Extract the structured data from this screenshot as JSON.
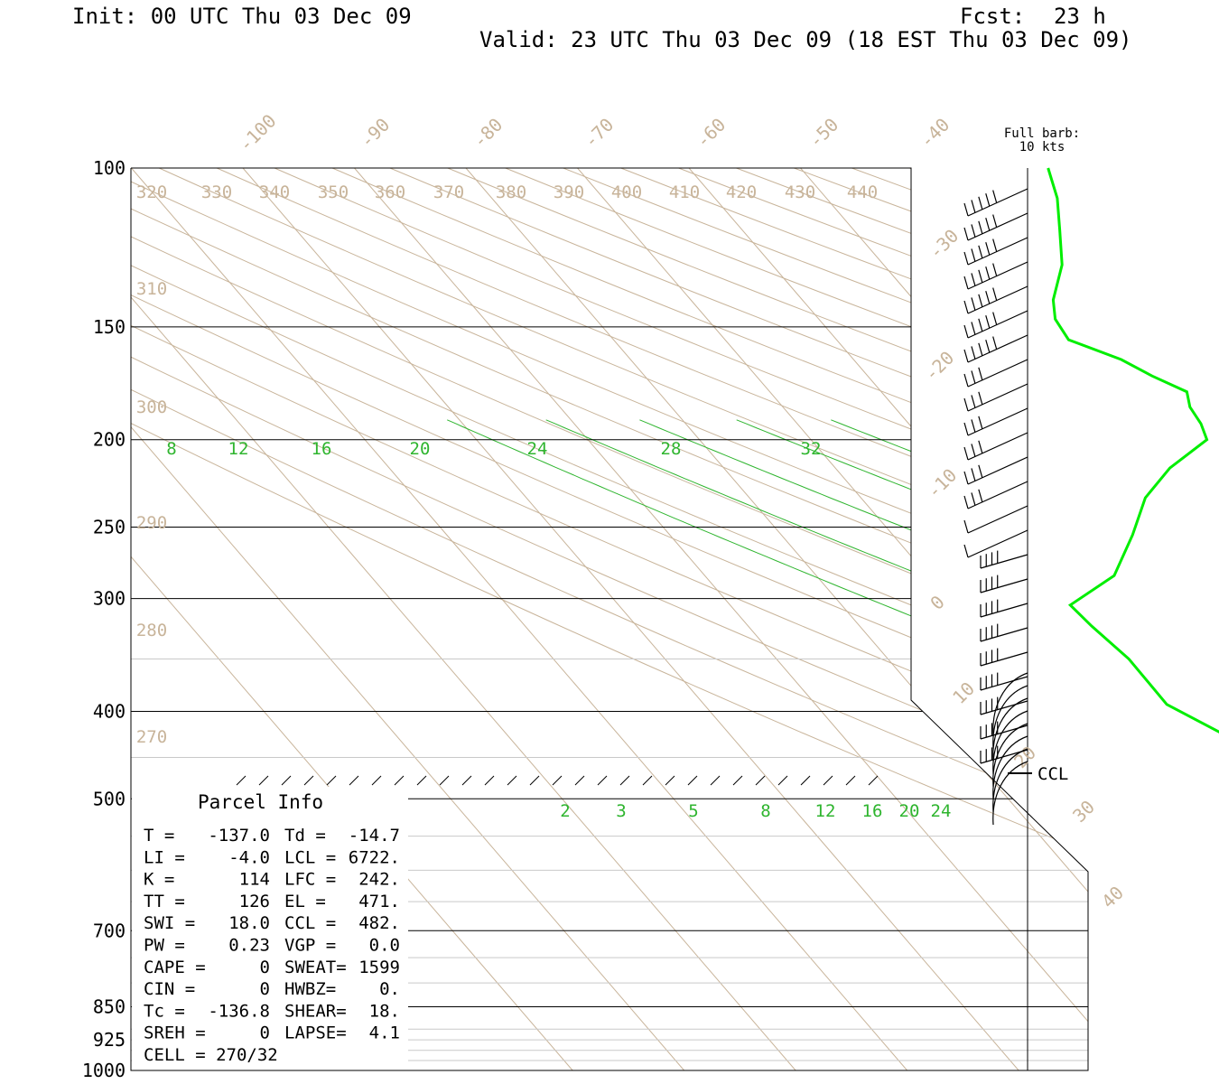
{
  "header": {
    "init": "Init: 00 UTC Thu 03 Dec 09",
    "fcst_label": "Fcst:",
    "fcst_hours": "23 h",
    "valid": "Valid: 23 UTC Thu 03 Dec 09 (18 EST Thu 03 Dec 09)"
  },
  "barb_legend": {
    "line1": "Full barb:",
    "line2": "10 kts"
  },
  "ccl_label": "CCL",
  "parcel_info": {
    "title": "Parcel Info",
    "rows": [
      [
        "T  =",
        "-137.0",
        "Td =",
        "-14.7"
      ],
      [
        "LI =",
        "-4.0",
        "LCL =",
        "6722."
      ],
      [
        "K  =",
        "114",
        "LFC =",
        "242."
      ],
      [
        "TT =",
        "126",
        "EL  =",
        "471."
      ],
      [
        "SWI =",
        "18.0",
        "CCL =",
        "482."
      ],
      [
        "PW =",
        "0.23",
        "VGP =",
        "0.0"
      ],
      [
        "CAPE =",
        "0",
        "SWEAT=",
        "1599"
      ],
      [
        "CIN =",
        "0",
        "HWBZ=",
        "0."
      ],
      [
        "Tc =",
        "-136.8",
        "SHEAR=",
        "18."
      ],
      [
        "SREH =",
        "0",
        "LAPSE=",
        "4.1"
      ],
      [
        "CELL = 270/32",
        "",
        "",
        ""
      ]
    ]
  },
  "colors": {
    "isotherm": "#c8b49a",
    "adiabat": "#c8b49a",
    "moist_adiabat": "#2fb52f",
    "mixing_ratio": "#2fb52f",
    "profile": "#00ee00",
    "isobar": "#000000",
    "frame": "#000000"
  },
  "chart_data": {
    "type": "skew-t",
    "y_axis": "pressure (hPa), log scale",
    "ylim": [
      1000,
      100
    ],
    "pressure_labels": [
      "100",
      "150",
      "200",
      "250",
      "300",
      "400",
      "500",
      "700",
      "850",
      "925",
      "1000"
    ],
    "isotherm_labels": [
      "-100",
      "-90",
      "-80",
      "-70",
      "-60",
      "-50",
      "-40",
      "-30",
      "-20",
      "-10",
      "0",
      "10",
      "20",
      "30",
      "40"
    ],
    "theta_labels_top": [
      "320",
      "330",
      "340",
      "350",
      "360",
      "370",
      "380",
      "390",
      "400",
      "410",
      "420",
      "430",
      "440"
    ],
    "theta_labels_left": [
      "310",
      "300",
      "290",
      "280",
      "270"
    ],
    "moist_adiabat_labels": [
      "8",
      "12",
      "16",
      "20",
      "24",
      "28",
      "32"
    ],
    "mixing_ratio_labels": [
      "2",
      "3",
      "5",
      "8",
      "12",
      "16",
      "20",
      "24"
    ],
    "temperature_profile": {
      "pressure": [
        100,
        108,
        117,
        128,
        140,
        147,
        155,
        163,
        170,
        177,
        184,
        192,
        200,
        215,
        232,
        255,
        283,
        305,
        322,
        350,
        393,
        430,
        462,
        492
      ],
      "temperature": [
        -27.8,
        -29.3,
        -31.5,
        -34,
        -37.5,
        -38.8,
        -39.2,
        -36,
        -34.5,
        -32.6,
        -33.5,
        -33.8,
        -34.5,
        -40,
        -44.5,
        -48.5,
        -53.3,
        -59.5,
        -59.2,
        -58.4,
        -58.5,
        -55.2,
        -57.8,
        -59
      ]
    },
    "wind_barbs": "column of wind barbs along right axis, 100 to 500 hPa",
    "grid": true
  }
}
